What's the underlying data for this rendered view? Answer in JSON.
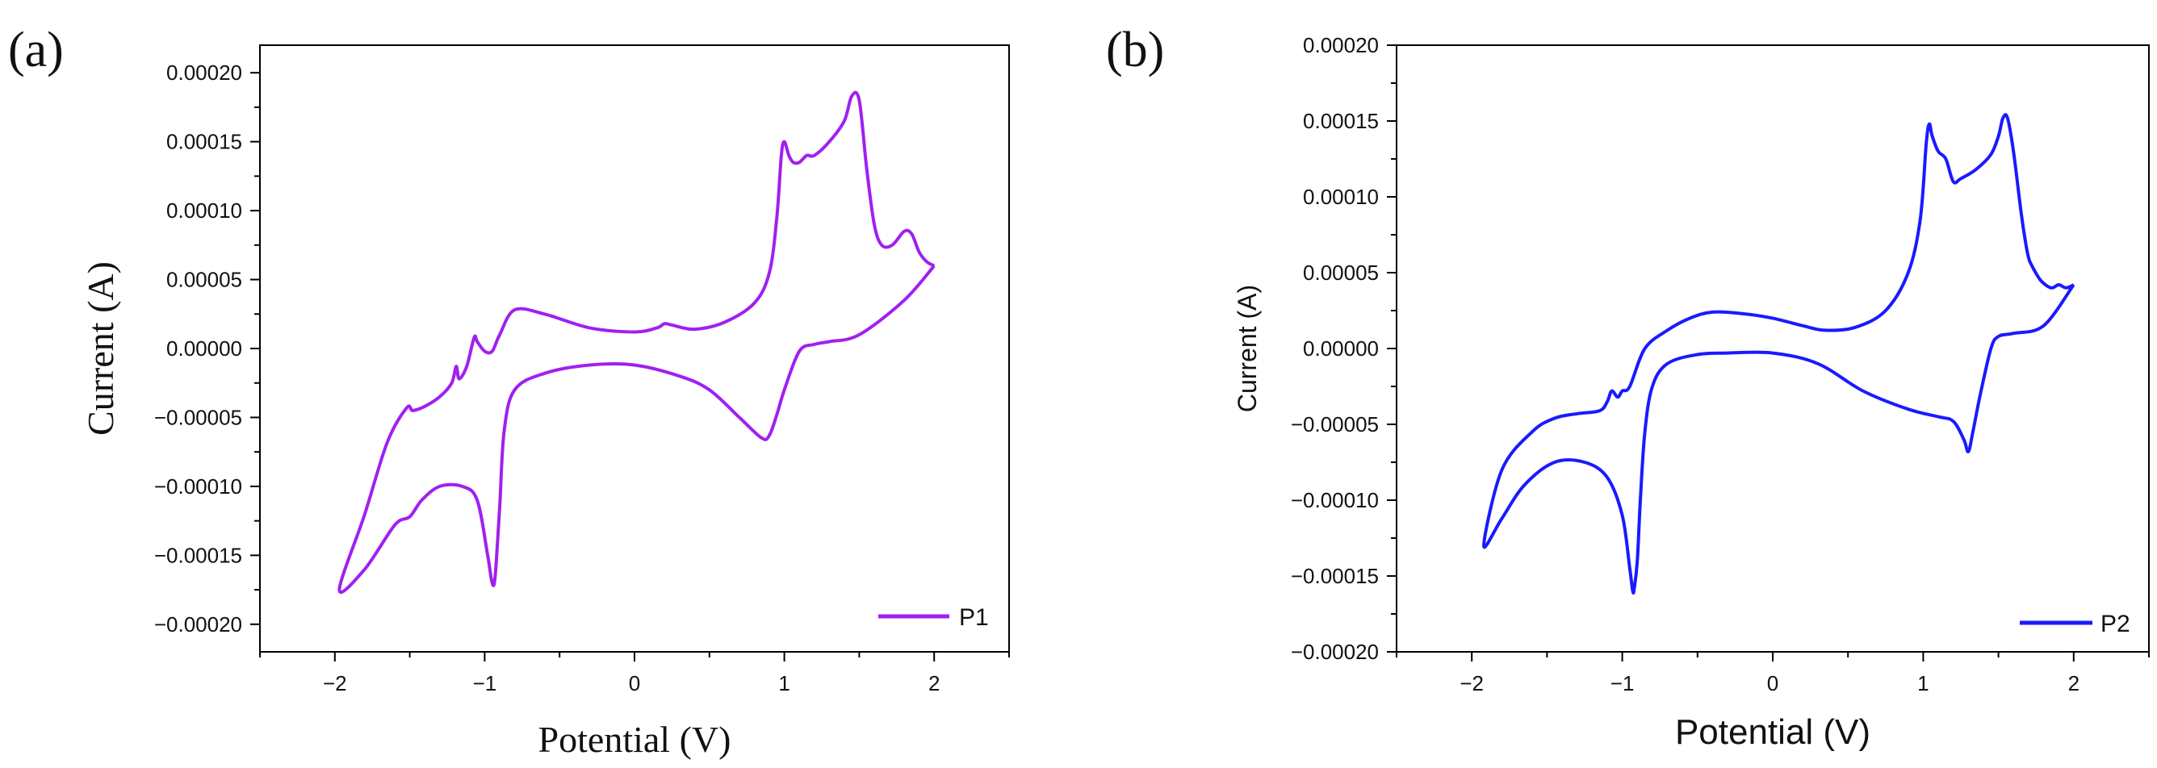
{
  "chart_data": [
    {
      "type": "line",
      "panel_label": "(a)",
      "title": "",
      "xlabel": "Potential (V)",
      "ylabel": "Current (A)",
      "xlim": [
        -2.5,
        2.5
      ],
      "ylim": [
        -0.00022,
        0.00022
      ],
      "grid": false,
      "legend_position": "bottom-right",
      "x_ticks": [
        -2,
        -1,
        0,
        1,
        2
      ],
      "x_tick_labels": [
        "−2",
        "−1",
        "0",
        "1",
        "2"
      ],
      "y_ticks": [
        0.0002,
        0.00015,
        0.0001,
        5e-05,
        0,
        -5e-05,
        -0.0001,
        -0.00015,
        -0.0002
      ],
      "y_tick_labels": [
        "0.00020",
        "0.00015",
        "0.00010",
        "0.00005",
        "0.00000",
        "−0.00005",
        "−0.00010",
        "−0.00015",
        "−0.00020"
      ],
      "series": [
        {
          "name": "P1",
          "color": "#a020f0",
          "x": [
            2.0,
            1.8,
            1.5,
            1.3,
            1.2,
            1.1,
            1.0,
            0.95,
            0.9,
            0.85,
            0.7,
            0.5,
            0.3,
            0.0,
            -0.3,
            -0.6,
            -0.8,
            -0.87,
            -0.9,
            -0.93,
            -0.95,
            -0.98,
            -1.05,
            -1.15,
            -1.3,
            -1.42,
            -1.5,
            -1.6,
            -1.8,
            -1.97,
            -1.8,
            -1.65,
            -1.52,
            -1.48,
            -1.4,
            -1.3,
            -1.22,
            -1.19,
            -1.17,
            -1.12,
            -1.07,
            -1.05,
            -1.0,
            -0.95,
            -0.9,
            -0.8,
            -0.6,
            -0.3,
            0.0,
            0.15,
            0.2,
            0.25,
            0.4,
            0.6,
            0.8,
            0.9,
            0.95,
            0.98,
            1.0,
            1.03,
            1.06,
            1.1,
            1.15,
            1.2,
            1.3,
            1.4,
            1.45,
            1.5,
            1.55,
            1.6,
            1.65,
            1.72,
            1.8,
            1.85,
            1.9,
            1.95,
            2.0
          ],
          "y": [
            6e-05,
            3.5e-05,
            1e-05,
            5e-06,
            3e-06,
            -2e-06,
            -3e-05,
            -4.8e-05,
            -6.3e-05,
            -6.5e-05,
            -5e-05,
            -3e-05,
            -2e-05,
            -1.2e-05,
            -1.2e-05,
            -1.8e-05,
            -3e-05,
            -6e-05,
            -0.000115,
            -0.000165,
            -0.00017,
            -0.00015,
            -0.00011,
            -0.0001,
            -0.0001,
            -0.00011,
            -0.000122,
            -0.000128,
            -0.00016,
            -0.000175,
            -0.00012,
            -6.8e-05,
            -4.3e-05,
            -4.5e-05,
            -4.2e-05,
            -3.5e-05,
            -2.5e-05,
            -1.3e-05,
            -2.2e-05,
            -1.3e-05,
            8e-06,
            5e-06,
            -2e-06,
            -2e-06,
            1e-05,
            2.8e-05,
            2.5e-05,
            1.5e-05,
            1.2e-05,
            1.5e-05,
            1.8e-05,
            1.7e-05,
            1.4e-05,
            1.9e-05,
            3.3e-05,
            5.5e-05,
            9.5e-05,
            0.00014,
            0.00015,
            0.00014,
            0.000135,
            0.000135,
            0.00014,
            0.00014,
            0.00015,
            0.000165,
            0.000183,
            0.00018,
            0.00013,
            9e-05,
            7.5e-05,
            7.5e-05,
            8.5e-05,
            8.3e-05,
            7e-05,
            6.3e-05,
            6e-05
          ]
        }
      ]
    },
    {
      "type": "line",
      "panel_label": "(b)",
      "title": "",
      "xlabel": "Potential (V)",
      "ylabel": "Current (A)",
      "xlim": [
        -2.5,
        2.5
      ],
      "ylim": [
        -0.0002,
        0.0002
      ],
      "grid": false,
      "legend_position": "bottom-right",
      "x_ticks": [
        -2,
        -1,
        0,
        1,
        2
      ],
      "x_tick_labels": [
        "−2",
        "−1",
        "0",
        "1",
        "2"
      ],
      "y_ticks": [
        0.0002,
        0.00015,
        0.0001,
        5e-05,
        0,
        -5e-05,
        -0.0001,
        -0.00015,
        -0.0002
      ],
      "y_tick_labels": [
        "0.00020",
        "0.00015",
        "0.00010",
        "0.00005",
        "0.00000",
        "−0.00005",
        "−0.00010",
        "−0.00015",
        "−0.00020"
      ],
      "series": [
        {
          "name": "P2",
          "color": "#1a1aff",
          "x": [
            2.0,
            1.8,
            1.6,
            1.5,
            1.45,
            1.38,
            1.33,
            1.3,
            1.27,
            1.2,
            1.1,
            0.9,
            0.6,
            0.3,
            0.0,
            -0.3,
            -0.5,
            -0.7,
            -0.8,
            -0.85,
            -0.88,
            -0.9,
            -0.92,
            -0.93,
            -0.95,
            -1.0,
            -1.1,
            -1.25,
            -1.45,
            -1.65,
            -1.8,
            -1.92,
            -1.8,
            -1.6,
            -1.45,
            -1.3,
            -1.15,
            -1.1,
            -1.07,
            -1.03,
            -1.0,
            -0.95,
            -0.85,
            -0.7,
            -0.55,
            -0.4,
            -0.2,
            0.0,
            0.2,
            0.35,
            0.55,
            0.75,
            0.9,
            0.98,
            1.02,
            1.04,
            1.06,
            1.1,
            1.15,
            1.2,
            1.25,
            1.35,
            1.45,
            1.5,
            1.53,
            1.56,
            1.6,
            1.65,
            1.68,
            1.7,
            1.72,
            1.78,
            1.85,
            1.9,
            1.95,
            2.0
          ],
          "y": [
            4.2e-05,
            1.5e-05,
            1e-05,
            8e-06,
            0.0,
            -3e-05,
            -5.5e-05,
            -6.8e-05,
            -6e-05,
            -4.8e-05,
            -4.5e-05,
            -4e-05,
            -2.8e-05,
            -1e-05,
            -3e-06,
            -3e-06,
            -4e-06,
            -1e-05,
            -2.5e-05,
            -5.5e-05,
            -0.0001,
            -0.00014,
            -0.000158,
            -0.00016,
            -0.000145,
            -0.00011,
            -8.5e-05,
            -7.5e-05,
            -7.5e-05,
            -9e-05,
            -0.000112,
            -0.00013,
            -8e-05,
            -5.5e-05,
            -4.6e-05,
            -4.3e-05,
            -4.1e-05,
            -3.5e-05,
            -2.8e-05,
            -3.2e-05,
            -2.8e-05,
            -2.5e-05,
            0.0,
            1.2e-05,
            2e-05,
            2.4e-05,
            2.3e-05,
            2e-05,
            1.5e-05,
            1.2e-05,
            1.4e-05,
            2.5e-05,
            5e-05,
            8.5e-05,
            0.000135,
            0.000148,
            0.00014,
            0.00013,
            0.000125,
            0.00011,
            0.000112,
            0.000118,
            0.000128,
            0.00014,
            0.000152,
            0.000152,
            0.00013,
            9e-05,
            7e-05,
            6e-05,
            5.5e-05,
            4.5e-05,
            4e-05,
            4.2e-05,
            4e-05,
            4.2e-05
          ]
        }
      ]
    }
  ]
}
